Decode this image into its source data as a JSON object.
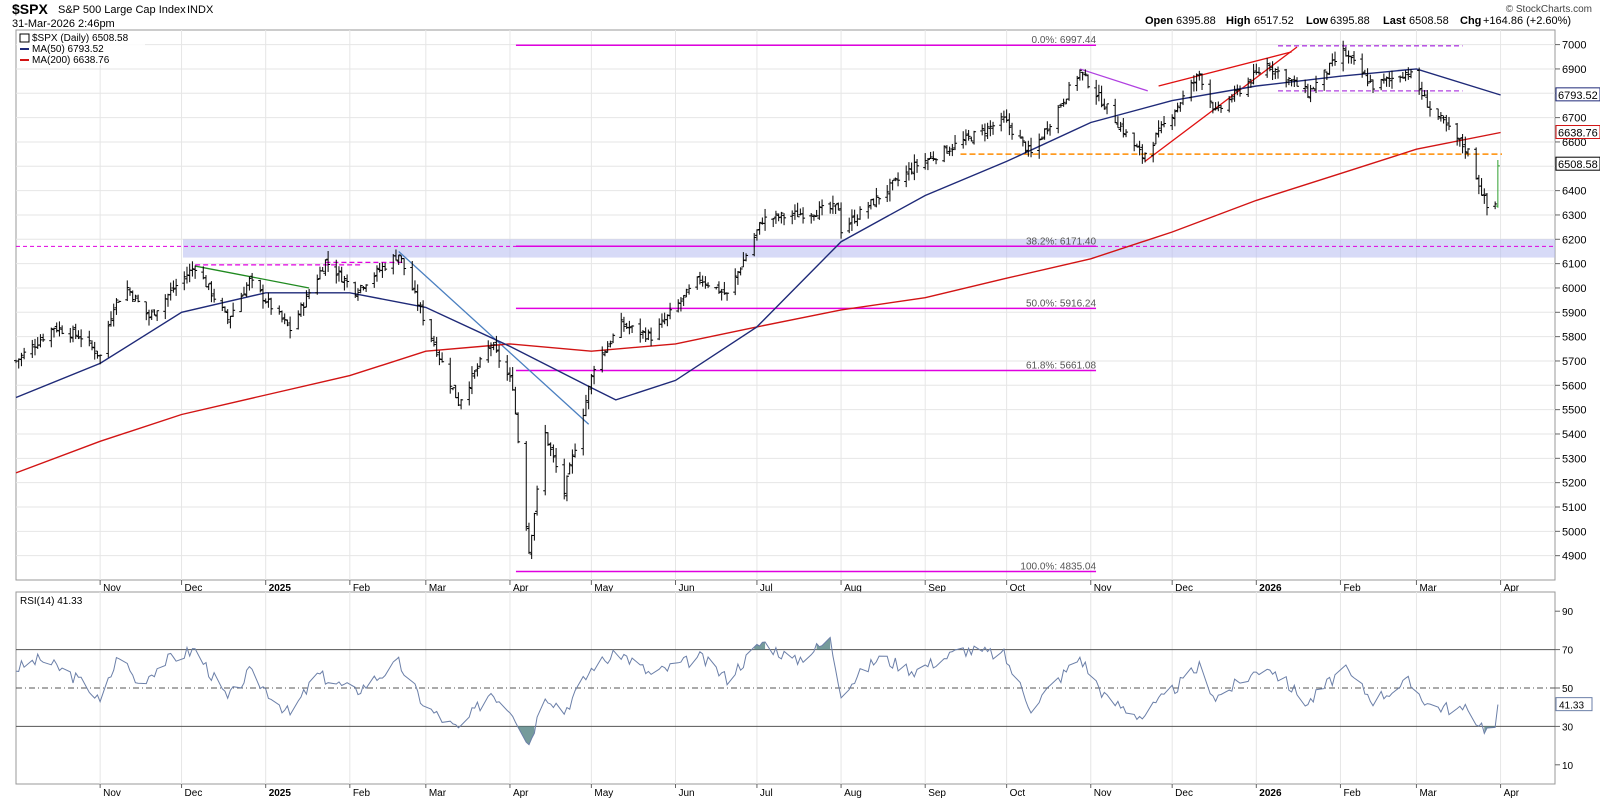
{
  "header": {
    "symbol": "$SPX",
    "name": "S&P 500 Large Cap Index",
    "exchange": "INDX",
    "datetime": "31-Mar-2026 2:46pm",
    "open_label": "Open",
    "open": "6395.88",
    "high_label": "High",
    "high": "6517.52",
    "low_label": "Low",
    "low": "6395.88",
    "last_label": "Last",
    "last": "6508.58",
    "chg_label": "Chg",
    "chg": "+164.86 (+2.60%)",
    "credit": "© StockCharts.com"
  },
  "legend": {
    "price": "$SPX (Daily) 6508.58",
    "ma50": "MA(50) 6793.52",
    "ma200": "MA(200) 6638.76"
  },
  "rsi_legend": "RSI(14) 41.33",
  "last_labels": {
    "ma50": "6793.52",
    "ma200": "6638.76",
    "price": "6508.58",
    "rsi": "41.33"
  },
  "colors": {
    "price": "#000000",
    "ma50": "#1f2a78",
    "ma200": "#d21414",
    "fib": "#e000e0",
    "support": "#ff8c00",
    "trend_red": "#e01010",
    "trend_green": "#208a20",
    "trend_blue": "#4a7fc0",
    "trend_purple": "#b040e0",
    "zone": "#b7bcf0",
    "rsi_line": "#6b7fa8",
    "rsi_fill": "#5d8a8a"
  },
  "chart_data": [
    {
      "type": "ohlc",
      "title": "$SPX (Daily) 6508.58",
      "x_range": [
        "2024-10-01",
        "2026-04-10"
      ],
      "ylim": [
        4800,
        7060
      ],
      "y_ticks": [
        4900,
        5000,
        5100,
        5200,
        5300,
        5400,
        5500,
        5600,
        5700,
        5800,
        5900,
        6000,
        6100,
        6200,
        6300,
        6400,
        6500,
        6600,
        6700,
        6800,
        6900,
        7000
      ],
      "x_ticks": [
        {
          "label": "Nov",
          "date": "2024-11-01"
        },
        {
          "label": "Dec",
          "date": "2024-12-01"
        },
        {
          "label": "2025",
          "date": "2025-01-01"
        },
        {
          "label": "Feb",
          "date": "2025-02-01"
        },
        {
          "label": "Mar",
          "date": "2025-03-01"
        },
        {
          "label": "Apr",
          "date": "2025-04-01"
        },
        {
          "label": "May",
          "date": "2025-05-01"
        },
        {
          "label": "Jun",
          "date": "2025-06-01"
        },
        {
          "label": "Jul",
          "date": "2025-07-01"
        },
        {
          "label": "Aug",
          "date": "2025-08-01"
        },
        {
          "label": "Sep",
          "date": "2025-09-01"
        },
        {
          "label": "Oct",
          "date": "2025-10-01"
        },
        {
          "label": "Nov",
          "date": "2025-11-01"
        },
        {
          "label": "Dec",
          "date": "2025-12-01"
        },
        {
          "label": "2026",
          "date": "2026-01-01"
        },
        {
          "label": "Feb",
          "date": "2026-02-01"
        },
        {
          "label": "Mar",
          "date": "2026-03-01"
        },
        {
          "label": "Apr",
          "date": "2026-04-01"
        }
      ],
      "price_path": [
        [
          "2024-10-01",
          5700
        ],
        [
          "2024-10-15",
          5840
        ],
        [
          "2024-10-25",
          5800
        ],
        [
          "2024-11-01",
          5720
        ],
        [
          "2024-11-06",
          5930
        ],
        [
          "2024-11-11",
          6000
        ],
        [
          "2024-11-19",
          5880
        ],
        [
          "2024-11-29",
          6010
        ],
        [
          "2024-12-06",
          6090
        ],
        [
          "2024-12-18",
          5870
        ],
        [
          "2024-12-26",
          6030
        ],
        [
          "2025-01-10",
          5830
        ],
        [
          "2025-01-23",
          6110
        ],
        [
          "2025-02-03",
          5990
        ],
        [
          "2025-02-19",
          6140
        ],
        [
          "2025-02-28",
          5880
        ],
        [
          "2025-03-13",
          5530
        ],
        [
          "2025-03-25",
          5770
        ],
        [
          "2025-04-02",
          5600
        ],
        [
          "2025-04-08",
          4920
        ],
        [
          "2025-04-14",
          5400
        ],
        [
          "2025-04-21",
          5160
        ],
        [
          "2025-05-02",
          5680
        ],
        [
          "2025-05-12",
          5850
        ],
        [
          "2025-05-23",
          5800
        ],
        [
          "2025-06-10",
          6040
        ],
        [
          "2025-06-20",
          5970
        ],
        [
          "2025-07-03",
          6280
        ],
        [
          "2025-07-31",
          6330
        ],
        [
          "2025-08-01",
          6240
        ],
        [
          "2025-08-28",
          6500
        ],
        [
          "2025-09-30",
          6690
        ],
        [
          "2025-10-10",
          6550
        ],
        [
          "2025-10-28",
          6890
        ],
        [
          "2025-11-20",
          6540
        ],
        [
          "2025-12-11",
          6880
        ],
        [
          "2025-12-17",
          6720
        ],
        [
          "2026-01-05",
          6920
        ],
        [
          "2026-01-20",
          6800
        ],
        [
          "2026-02-02",
          6970
        ],
        [
          "2026-02-13",
          6830
        ],
        [
          "2026-02-26",
          6890
        ],
        [
          "2026-03-06",
          6740
        ],
        [
          "2026-03-20",
          6560
        ],
        [
          "2026-03-27",
          6330
        ],
        [
          "2026-03-30",
          6345
        ],
        [
          "2026-03-31",
          6509
        ]
      ],
      "ma50_path": [
        [
          "2024-10-01",
          5550
        ],
        [
          "2024-11-01",
          5690
        ],
        [
          "2024-12-01",
          5900
        ],
        [
          "2025-01-01",
          5980
        ],
        [
          "2025-02-01",
          5980
        ],
        [
          "2025-03-01",
          5920
        ],
        [
          "2025-04-01",
          5760
        ],
        [
          "2025-05-01",
          5590
        ],
        [
          "2025-05-10",
          5540
        ],
        [
          "2025-06-01",
          5620
        ],
        [
          "2025-07-01",
          5840
        ],
        [
          "2025-08-01",
          6190
        ],
        [
          "2025-09-01",
          6380
        ],
        [
          "2025-10-01",
          6520
        ],
        [
          "2025-11-01",
          6680
        ],
        [
          "2025-12-01",
          6770
        ],
        [
          "2026-01-01",
          6830
        ],
        [
          "2026-02-01",
          6870
        ],
        [
          "2026-03-01",
          6900
        ],
        [
          "2026-04-01",
          6793
        ]
      ],
      "ma200_path": [
        [
          "2024-10-01",
          5240
        ],
        [
          "2024-11-01",
          5370
        ],
        [
          "2024-12-01",
          5480
        ],
        [
          "2025-01-01",
          5560
        ],
        [
          "2025-02-01",
          5640
        ],
        [
          "2025-03-01",
          5740
        ],
        [
          "2025-04-01",
          5770
        ],
        [
          "2025-05-01",
          5740
        ],
        [
          "2025-06-01",
          5770
        ],
        [
          "2025-07-01",
          5840
        ],
        [
          "2025-08-01",
          5910
        ],
        [
          "2025-09-01",
          5960
        ],
        [
          "2025-10-01",
          6040
        ],
        [
          "2025-11-01",
          6120
        ],
        [
          "2025-12-01",
          6230
        ],
        [
          "2026-01-01",
          6360
        ],
        [
          "2026-02-01",
          6470
        ],
        [
          "2026-03-01",
          6570
        ],
        [
          "2026-04-01",
          6639
        ]
      ],
      "fib_levels": [
        {
          "label": "0.0%: 6997.44",
          "value": 6997.44
        },
        {
          "label": "38.2%: 6171.40",
          "value": 6171.4
        },
        {
          "label": "50.0%: 5916.24",
          "value": 5916.24
        },
        {
          "label": "61.8%: 5661.08",
          "value": 5661.08
        },
        {
          "label": "100.0%: 4835.04",
          "value": 4835.04
        }
      ],
      "fib_range": [
        "2025-04-01",
        "2025-10-31"
      ],
      "support_level": 6550,
      "resistance_zone": [
        6125,
        6200
      ],
      "horizontal_ref": 6171
    },
    {
      "type": "line",
      "title": "RSI(14) 41.33",
      "ylim": [
        0,
        100
      ],
      "y_ticks": [
        10,
        30,
        50,
        70,
        90
      ],
      "reference_lines": [
        70,
        50,
        30
      ],
      "series": [
        {
          "name": "RSI(14)",
          "values": [
            [
              "2024-10-01",
              60
            ],
            [
              "2024-10-10",
              65
            ],
            [
              "2024-10-20",
              58
            ],
            [
              "2024-10-28",
              50
            ],
            [
              "2024-11-01",
              42
            ],
            [
              "2024-11-08",
              68
            ],
            [
              "2024-11-15",
              52
            ],
            [
              "2024-11-25",
              64
            ],
            [
              "2024-12-06",
              70
            ],
            [
              "2024-12-18",
              44
            ],
            [
              "2024-12-26",
              58
            ],
            [
              "2025-01-10",
              36
            ],
            [
              "2025-01-20",
              57
            ],
            [
              "2025-02-03",
              48
            ],
            [
              "2025-02-19",
              63
            ],
            [
              "2025-03-01",
              40
            ],
            [
              "2025-03-13",
              28
            ],
            [
              "2025-03-25",
              48
            ],
            [
              "2025-04-02",
              38
            ],
            [
              "2025-04-08",
              21
            ],
            [
              "2025-04-14",
              47
            ],
            [
              "2025-04-21",
              38
            ],
            [
              "2025-05-02",
              62
            ],
            [
              "2025-05-12",
              68
            ],
            [
              "2025-05-23",
              57
            ],
            [
              "2025-06-10",
              66
            ],
            [
              "2025-06-20",
              55
            ],
            [
              "2025-07-03",
              74
            ],
            [
              "2025-07-15",
              64
            ],
            [
              "2025-07-28",
              75
            ],
            [
              "2025-08-01",
              48
            ],
            [
              "2025-08-15",
              66
            ],
            [
              "2025-08-28",
              59
            ],
            [
              "2025-09-15",
              70
            ],
            [
              "2025-09-30",
              67
            ],
            [
              "2025-10-10",
              40
            ],
            [
              "2025-10-28",
              66
            ],
            [
              "2025-11-07",
              44
            ],
            [
              "2025-11-20",
              35
            ],
            [
              "2025-12-11",
              61
            ],
            [
              "2025-12-17",
              45
            ],
            [
              "2026-01-05",
              62
            ],
            [
              "2026-01-20",
              42
            ],
            [
              "2026-02-02",
              60
            ],
            [
              "2026-02-13",
              44
            ],
            [
              "2026-02-26",
              53
            ],
            [
              "2026-03-06",
              41
            ],
            [
              "2026-03-20",
              38
            ],
            [
              "2026-03-27",
              28
            ],
            [
              "2026-03-30",
              30
            ],
            [
              "2026-03-31",
              41.33
            ]
          ]
        }
      ]
    }
  ]
}
